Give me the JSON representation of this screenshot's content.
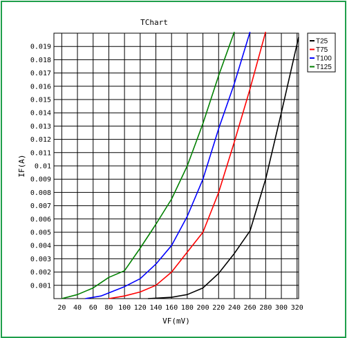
{
  "chart_data": {
    "type": "line",
    "title": "TChart",
    "xlabel": "VF(mV)",
    "ylabel": "IF(A)",
    "xlim": [
      10,
      322
    ],
    "ylim": [
      0,
      0.02
    ],
    "x_ticks": [
      20,
      40,
      60,
      80,
      100,
      120,
      140,
      160,
      180,
      200,
      220,
      240,
      260,
      280,
      300,
      320
    ],
    "y_ticks": [
      0.001,
      0.002,
      0.003,
      0.004,
      0.005,
      0.006,
      0.007,
      0.008,
      0.009,
      0.01,
      0.011,
      0.012,
      0.013,
      0.014,
      0.015,
      0.016,
      0.017,
      0.018,
      0.019
    ],
    "grid": true,
    "legend_position": "right",
    "series": [
      {
        "name": "T25",
        "color": "#000000",
        "x": [
          130,
          160,
          180,
          200,
          220,
          240,
          260,
          280,
          300,
          322
        ],
        "y": [
          0.0,
          0.0001,
          0.0003,
          0.0008,
          0.0019,
          0.0034,
          0.0051,
          0.009,
          0.014,
          0.0197
        ]
      },
      {
        "name": "T75",
        "color": "#ff0000",
        "x": [
          80,
          100,
          120,
          140,
          160,
          180,
          200,
          220,
          240,
          260,
          280
        ],
        "y": [
          0.0,
          0.0002,
          0.0005,
          0.001,
          0.002,
          0.0035,
          0.005,
          0.008,
          0.0118,
          0.0158,
          0.0201
        ]
      },
      {
        "name": "T100",
        "color": "#0000ff",
        "x": [
          50,
          70,
          100,
          120,
          140,
          160,
          180,
          200,
          220,
          240,
          260
        ],
        "y": [
          0.0,
          0.0002,
          0.0009,
          0.0015,
          0.0026,
          0.004,
          0.0062,
          0.009,
          0.0128,
          0.0162,
          0.0201
        ]
      },
      {
        "name": "T125",
        "color": "#008000",
        "x": [
          20,
          40,
          60,
          80,
          100,
          120,
          140,
          160,
          180,
          200,
          220,
          240
        ],
        "y": [
          0.0,
          0.0003,
          0.0008,
          0.0016,
          0.0021,
          0.0038,
          0.0056,
          0.0075,
          0.01,
          0.0132,
          0.0168,
          0.0201
        ]
      }
    ]
  }
}
